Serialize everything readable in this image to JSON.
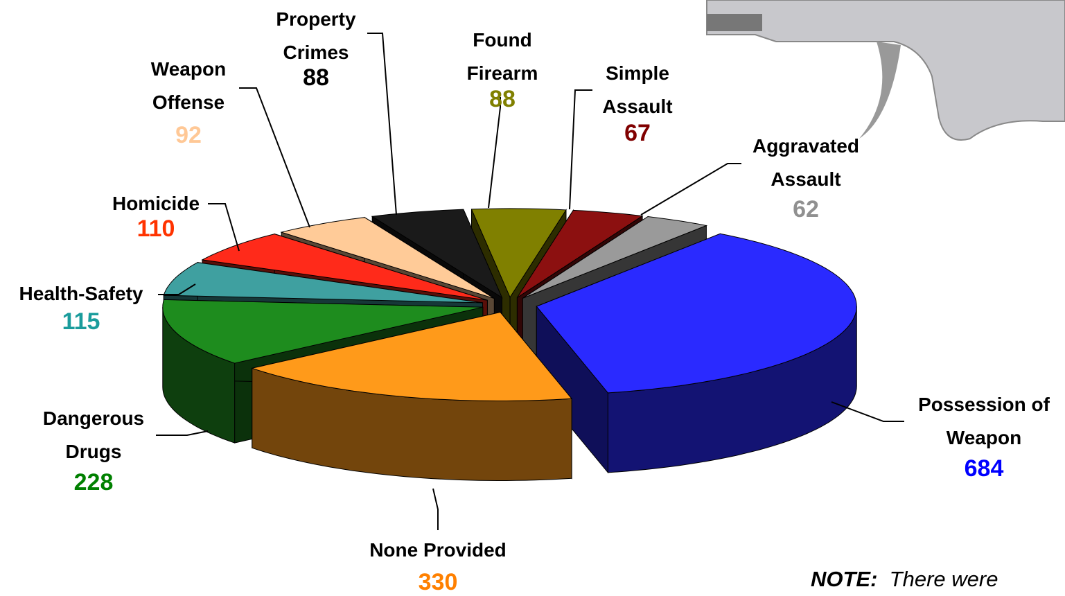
{
  "chart_data": {
    "type": "pie3d",
    "categories": [
      "Possession of Weapon",
      "None Provided",
      "Dangerous Drugs",
      "Health-Safety",
      "Homicide",
      "Weapon Offense",
      "Property Crimes",
      "Found Firearm",
      "Simple Assault",
      "Aggravated Assault"
    ],
    "values": [
      684,
      330,
      228,
      115,
      110,
      92,
      88,
      88,
      67,
      62
    ],
    "colors": [
      "#2a2aff",
      "#ff9a1a",
      "#1e8c1e",
      "#3fa0a0",
      "#ff2a1a",
      "#ffcb98",
      "#1a1a1a",
      "#808000",
      "#8c1010",
      "#9a9a9a"
    ],
    "label_colors": [
      "#0000ff",
      "#ff8000",
      "#008000",
      "#1a9c9c",
      "#ff3300",
      "#ffc896",
      "#000000",
      "#808000",
      "#800000",
      "#909090"
    ]
  },
  "note": {
    "label": "NOTE:",
    "text": "There were"
  }
}
